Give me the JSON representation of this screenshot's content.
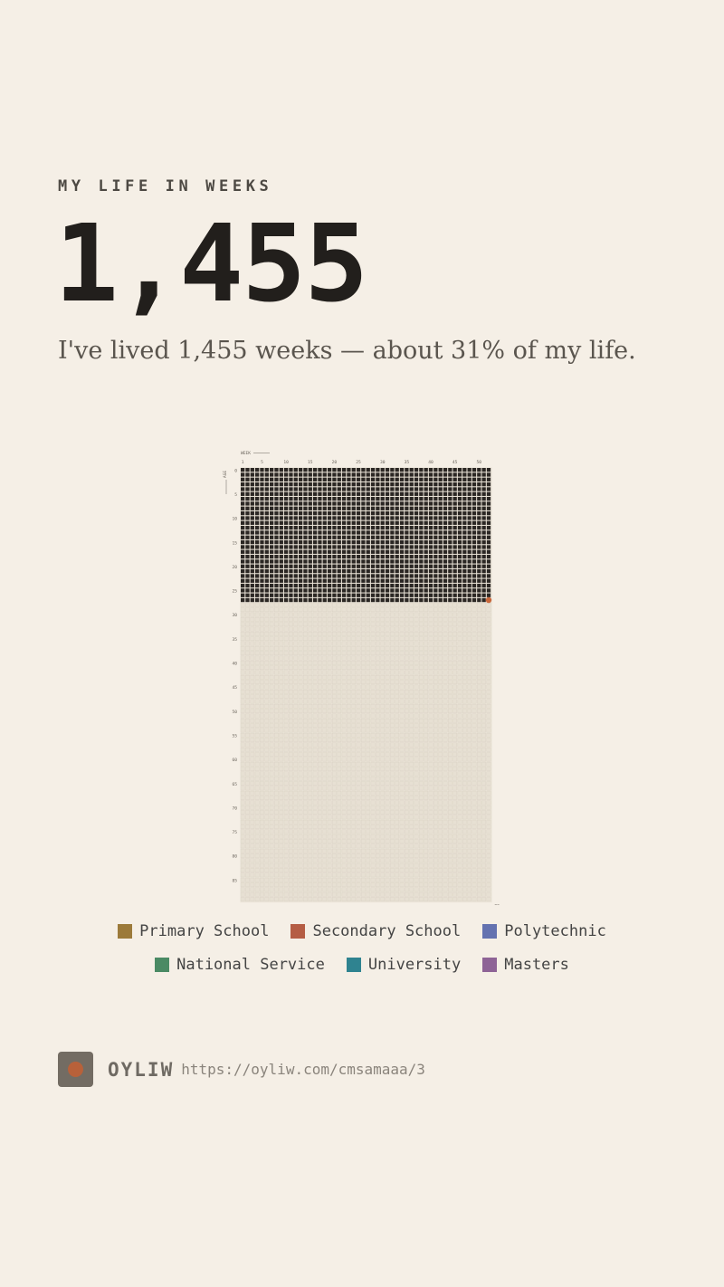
{
  "header": {
    "eyebrow": "MY LIFE IN WEEKS",
    "weeks_lived": "1,455",
    "summary": "I've lived 1,455 weeks — about 31% of my life."
  },
  "grid": {
    "week_axis_label": "WEEK",
    "age_axis_label": "AGE",
    "week_ticks": [
      "1",
      "5",
      "10",
      "15",
      "20",
      "25",
      "30",
      "35",
      "40",
      "45",
      "50"
    ],
    "age_ticks": [
      "0",
      "5",
      "10",
      "15",
      "20",
      "25",
      "30",
      "35",
      "40",
      "45",
      "50",
      "55",
      "60",
      "65",
      "70",
      "75",
      "80",
      "85"
    ],
    "end_label": "90",
    "total_years": 90,
    "weeks_per_year": 52,
    "lived_weeks": 1455,
    "colors": {
      "lived": "#2b2724",
      "future": "#e7e0d3",
      "future_border": "#d8d0c2",
      "current": "#c8663a"
    }
  },
  "legend": {
    "rows": [
      [
        {
          "label": "Primary School",
          "color": "#9c7a3a"
        },
        {
          "label": "Secondary School",
          "color": "#b55d44"
        },
        {
          "label": "Polytechnic",
          "color": "#6472b0"
        }
      ],
      [
        {
          "label": "National Service",
          "color": "#4a8a64"
        },
        {
          "label": "University",
          "color": "#2f8390"
        },
        {
          "label": "Masters",
          "color": "#8e6396"
        }
      ]
    ]
  },
  "footer": {
    "brand": "OYLIW",
    "url": "https://oyliw.com/cmsamaaa/3"
  }
}
